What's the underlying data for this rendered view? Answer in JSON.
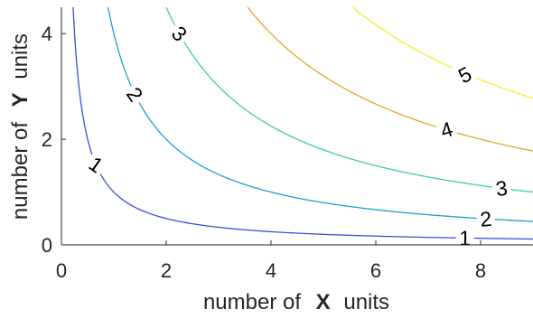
{
  "chart_data": {
    "type": "line",
    "subtype": "contour",
    "title": "",
    "xlabel": {
      "prefix": "number of",
      "emph": "X",
      "suffix": "units"
    },
    "ylabel": {
      "prefix": "number of",
      "emph": "Y",
      "suffix": "units"
    },
    "xlim": [
      0,
      9
    ],
    "ylim": [
      0,
      4.5
    ],
    "xticks": [
      0,
      2,
      4,
      6,
      8
    ],
    "yticks": [
      0,
      2,
      4
    ],
    "xtick_labels": [
      "0",
      "2",
      "4",
      "6",
      "8"
    ],
    "ytick_labels": [
      "0",
      "2",
      "4"
    ],
    "grid": false,
    "legend": "none",
    "function": "utility level curves, Y = level^2 / X",
    "series": [
      {
        "level": 1,
        "label": "1",
        "color": "#3a4fd6",
        "x": [
          0.222,
          0.3,
          0.4,
          0.5,
          0.7,
          1.0,
          1.5,
          2,
          3,
          4,
          5,
          6,
          7,
          8,
          9
        ],
        "y": [
          4.5,
          3.333,
          2.5,
          2.0,
          1.429,
          1.0,
          0.667,
          0.5,
          0.333,
          0.25,
          0.2,
          0.167,
          0.143,
          0.125,
          0.111
        ]
      },
      {
        "level": 2,
        "label": "2",
        "color": "#1aa0cf",
        "x": [
          0.889,
          1.0,
          1.2,
          1.5,
          2,
          2.5,
          3,
          4,
          5,
          6,
          7,
          8,
          9
        ],
        "y": [
          4.5,
          4.0,
          3.333,
          2.667,
          2.0,
          1.6,
          1.333,
          1.0,
          0.8,
          0.667,
          0.571,
          0.5,
          0.444
        ]
      },
      {
        "level": 3,
        "label": "3",
        "color": "#3ccf8e",
        "x": [
          2.0,
          2.25,
          2.5,
          3,
          3.5,
          4,
          5,
          6,
          7,
          8,
          9
        ],
        "y": [
          4.5,
          4.0,
          3.6,
          3.0,
          2.571,
          2.25,
          1.8,
          1.5,
          1.286,
          1.125,
          1.0
        ]
      },
      {
        "level": 4,
        "label": "4",
        "color": "#e3a52a",
        "x": [
          3.556,
          4,
          4.5,
          5,
          5.5,
          6,
          7,
          8,
          9
        ],
        "y": [
          4.5,
          4.0,
          3.556,
          3.2,
          2.909,
          2.667,
          2.286,
          2.0,
          1.778
        ]
      },
      {
        "level": 5,
        "label": "5",
        "color": "#f2ee2a",
        "x": [
          5.556,
          6,
          6.5,
          7,
          7.5,
          8,
          8.5,
          9
        ],
        "y": [
          4.5,
          4.167,
          3.846,
          3.571,
          3.333,
          3.125,
          2.941,
          2.778
        ]
      }
    ],
    "inline_labels": [
      {
        "text": "1",
        "level": 1,
        "x": 0.66,
        "y": 1.52,
        "angle": 35
      },
      {
        "text": "1",
        "level": 1,
        "x": 7.7,
        "y": 0.13,
        "angle": 0
      },
      {
        "text": "2",
        "level": 2,
        "x": 1.4,
        "y": 2.85,
        "angle": 55
      },
      {
        "text": "2",
        "level": 2,
        "x": 8.1,
        "y": 0.49,
        "angle": -5
      },
      {
        "text": "3",
        "level": 3,
        "x": 2.25,
        "y": 4.0,
        "angle": 45
      },
      {
        "text": "3",
        "level": 3,
        "x": 8.4,
        "y": 1.07,
        "angle": -7
      },
      {
        "text": "4",
        "level": 4,
        "x": 7.35,
        "y": 2.18,
        "angle": -17
      },
      {
        "text": "5",
        "level": 5,
        "x": 7.7,
        "y": 3.22,
        "angle": -27
      }
    ]
  }
}
